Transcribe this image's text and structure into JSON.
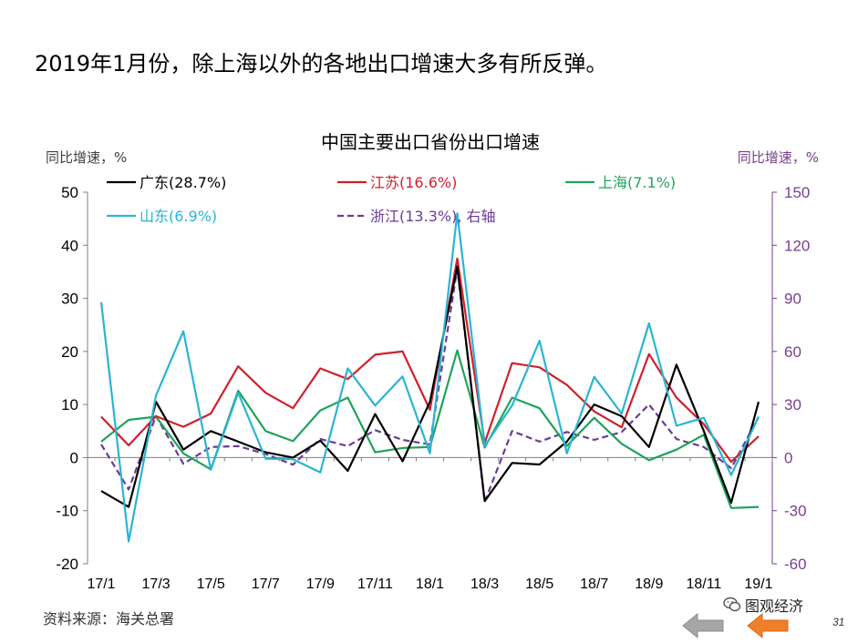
{
  "slide": {
    "title": "2019年1月份，除上海以外的各地出口增速大多有所反弹。",
    "source": "资料来源：海关总署",
    "page_number": "31",
    "watermark": "图观经济"
  },
  "colors": {
    "guangdong": "#000000",
    "jiangsu": "#d0202a",
    "shanghai": "#1fa35a",
    "shandong": "#2ab4d4",
    "zhejiang": "#6a3c9a",
    "axis": "#7f7f7f",
    "right_axis": "#7a3e8e",
    "nav_prev": "#a6a6a6",
    "nav_next": "#f07f2a"
  },
  "chart_data": {
    "type": "line",
    "title": "中国主要出口省份出口增速",
    "ylabel_left": "同比增速，%",
    "ylabel_right": "同比增速，%",
    "ylim_left": [
      -20,
      50
    ],
    "ylim_right": [
      -60,
      150
    ],
    "yticks_left": [
      "50",
      "40",
      "30",
      "20",
      "10",
      "0",
      "-10",
      "-20"
    ],
    "yticks_right": [
      "150",
      "120",
      "90",
      "60",
      "30",
      "0",
      "-30",
      "-60"
    ],
    "x": [
      "17/1",
      "17/2",
      "17/3",
      "17/4",
      "17/5",
      "17/6",
      "17/7",
      "17/8",
      "17/9",
      "17/10",
      "17/11",
      "17/12",
      "18/1",
      "18/2",
      "18/3",
      "18/4",
      "18/5",
      "18/6",
      "18/7",
      "18/8",
      "18/9",
      "18/10",
      "18/11",
      "18/12",
      "19/1"
    ],
    "xtick_labels": [
      "17/1",
      "17/3",
      "17/5",
      "17/7",
      "17/9",
      "17/11",
      "18/1",
      "18/3",
      "18/5",
      "18/7",
      "18/9",
      "18/11",
      "19/1"
    ],
    "legend_placement": "top",
    "series": [
      {
        "key": "guangdong",
        "name": "广东(28.7%)",
        "axis": "left",
        "dash": false,
        "values": [
          -6.3,
          -9.3,
          10.5,
          1.5,
          5.0,
          3.0,
          1.0,
          0.0,
          3.2,
          -2.5,
          8.2,
          -0.7,
          10.5,
          36.0,
          -8.2,
          -1.0,
          -1.3,
          3.0,
          10.0,
          7.8,
          2.0,
          17.5,
          5.0,
          -8.5,
          10.5
        ]
      },
      {
        "key": "jiangsu",
        "name": "江苏(16.6%)",
        "axis": "left",
        "dash": false,
        "values": [
          7.7,
          2.3,
          7.8,
          5.8,
          8.3,
          17.2,
          12.2,
          9.3,
          16.8,
          14.8,
          19.4,
          20.0,
          9.0,
          37.5,
          2.8,
          17.8,
          17.0,
          13.7,
          8.7,
          5.7,
          19.5,
          11.3,
          6.3,
          -0.8,
          4.0
        ]
      },
      {
        "key": "shanghai",
        "name": "上海(7.1%)",
        "axis": "left",
        "dash": false,
        "values": [
          3.0,
          7.1,
          7.7,
          0.8,
          -2.2,
          12.6,
          5.0,
          3.1,
          8.9,
          11.3,
          1.0,
          1.8,
          2.0,
          20.2,
          1.9,
          11.3,
          9.3,
          2.2,
          7.5,
          2.6,
          -0.5,
          1.5,
          4.3,
          -9.5,
          -9.3
        ]
      },
      {
        "key": "shandong",
        "name": "山东(6.9%)",
        "axis": "left",
        "dash": false,
        "values": [
          29.3,
          -15.8,
          11.7,
          23.8,
          -2.3,
          12.2,
          -0.2,
          -0.3,
          -2.8,
          16.8,
          9.8,
          15.3,
          0.8,
          46.0,
          2.2,
          9.8,
          22.0,
          0.8,
          15.2,
          8.3,
          25.3,
          6.0,
          7.5,
          -3.3,
          7.7
        ]
      },
      {
        "key": "zhejiang",
        "name": "浙江(13.3%), 右轴",
        "axis": "right",
        "dash": true,
        "values": [
          7.5,
          -18.0,
          23.5,
          -3.5,
          6.0,
          6.5,
          2.0,
          -4.0,
          10.5,
          6.5,
          15.5,
          10.0,
          7.5,
          107.0,
          -25.0,
          15.0,
          9.0,
          14.5,
          10.0,
          14.5,
          30.0,
          10.5,
          6.0,
          -6.0,
          23.0
        ]
      }
    ]
  }
}
